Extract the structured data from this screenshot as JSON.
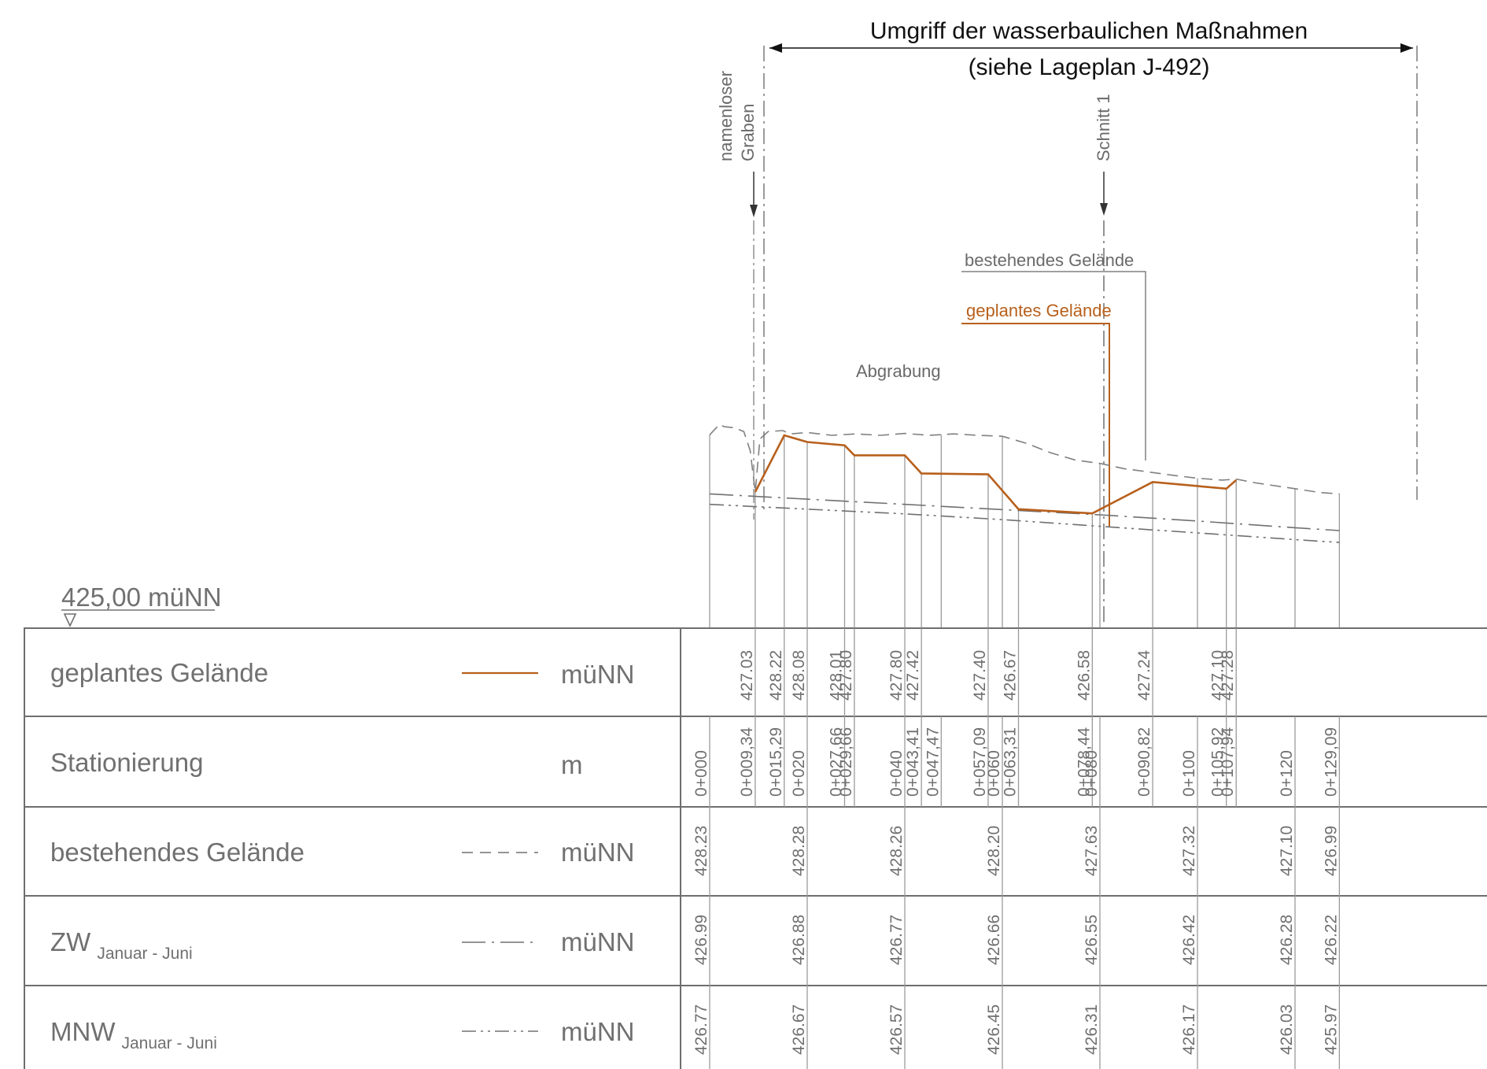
{
  "header": {
    "title_line1": "Umgriff der wasserbaulichen Maßnahmen",
    "title_line2": "(siehe Lageplan J-492)"
  },
  "labels": {
    "graben": [
      "namenloser",
      "Graben"
    ],
    "schnitt": "Schnitt 1",
    "bestehend": "bestehendes Gelände",
    "geplant": "geplantes Gelände",
    "abgrabung": "Abgrabung",
    "reference": "425,00 müNN"
  },
  "colors": {
    "planned": "#b8601c",
    "existing": "#808080",
    "grid": "#9a9a9a"
  },
  "table": {
    "rows": [
      {
        "label": "geplantes Gelände",
        "sub": "",
        "unit": "müNN",
        "line": "solid"
      },
      {
        "label": "Stationierung",
        "sub": "",
        "unit": "m",
        "line": "none"
      },
      {
        "label": "bestehendes Gelände",
        "sub": "",
        "unit": "müNN",
        "line": "dashed"
      },
      {
        "label": "ZW",
        "sub": "Januar - Juni",
        "unit": "müNN",
        "line": "dashdot"
      },
      {
        "label": "MNW",
        "sub": "Januar - Juni",
        "unit": "müNN",
        "line": "dashdotdot"
      }
    ],
    "stations": [
      "0+000",
      "0+009,34",
      "0+015,29",
      "0+020",
      "0+027,66",
      "0+029,66",
      "0+040",
      "0+043,41",
      "0+047,47",
      "0+057,09",
      "0+060",
      "0+063,31",
      "0+078,44",
      "0+080",
      "0+090,82",
      "0+100",
      "0+105,92",
      "0+107,94",
      "0+120",
      "0+129,09"
    ],
    "planned": [
      {
        "st": 9.34,
        "v": "427.03"
      },
      {
        "st": 15.29,
        "v": "428.22"
      },
      {
        "st": 20,
        "v": "428.08"
      },
      {
        "st": 27.66,
        "v": "428.01"
      },
      {
        "st": 29.66,
        "v": "427.80"
      },
      {
        "st": 40,
        "v": "427.80"
      },
      {
        "st": 43.41,
        "v": "427.42"
      },
      {
        "st": 57.09,
        "v": "427.40"
      },
      {
        "st": 63.31,
        "v": "426.67"
      },
      {
        "st": 78.44,
        "v": "426.58"
      },
      {
        "st": 90.82,
        "v": "427.24"
      },
      {
        "st": 105.92,
        "v": "427.10"
      },
      {
        "st": 107.94,
        "v": "427.28"
      }
    ],
    "existing": [
      {
        "st": 0,
        "v": "428.23"
      },
      {
        "st": 20,
        "v": "428.28"
      },
      {
        "st": 40,
        "v": "428.26"
      },
      {
        "st": 60,
        "v": "428.20"
      },
      {
        "st": 80,
        "v": "427.63"
      },
      {
        "st": 100,
        "v": "427.32"
      },
      {
        "st": 120,
        "v": "427.10"
      },
      {
        "st": 129.09,
        "v": "426.99"
      }
    ],
    "zw": [
      {
        "st": 0,
        "v": "426.99"
      },
      {
        "st": 20,
        "v": "426.88"
      },
      {
        "st": 40,
        "v": "426.77"
      },
      {
        "st": 60,
        "v": "426.66"
      },
      {
        "st": 80,
        "v": "426.55"
      },
      {
        "st": 100,
        "v": "426.42"
      },
      {
        "st": 120,
        "v": "426.28"
      },
      {
        "st": 129.09,
        "v": "426.22"
      }
    ],
    "mnw": [
      {
        "st": 0,
        "v": "426.77"
      },
      {
        "st": 20,
        "v": "426.67"
      },
      {
        "st": 40,
        "v": "426.57"
      },
      {
        "st": 60,
        "v": "426.45"
      },
      {
        "st": 80,
        "v": "426.31"
      },
      {
        "st": 100,
        "v": "426.17"
      },
      {
        "st": 120,
        "v": "426.03"
      },
      {
        "st": 129.09,
        "v": "425.97"
      }
    ]
  },
  "profile": {
    "planned_points": [
      [
        9.34,
        427.03
      ],
      [
        15.29,
        428.22
      ],
      [
        20,
        428.08
      ],
      [
        27.66,
        428.01
      ],
      [
        29.66,
        427.8
      ],
      [
        40,
        427.8
      ],
      [
        43.41,
        427.42
      ],
      [
        57.09,
        427.4
      ],
      [
        63.31,
        426.67
      ],
      [
        78.44,
        426.58
      ],
      [
        90.82,
        427.24
      ],
      [
        105.92,
        427.1
      ],
      [
        107.94,
        427.28
      ]
    ],
    "existing_points": [
      [
        0,
        428.23
      ],
      [
        2,
        428.45
      ],
      [
        3,
        428.4
      ],
      [
        5,
        428.38
      ],
      [
        7,
        428.3
      ],
      [
        8.3,
        427.9
      ],
      [
        9.34,
        427.03
      ],
      [
        10.3,
        428.14
      ],
      [
        12,
        428.3
      ],
      [
        15,
        428.32
      ],
      [
        16.5,
        428.25
      ],
      [
        20,
        428.28
      ],
      [
        25,
        428.22
      ],
      [
        30,
        428.25
      ],
      [
        35,
        428.22
      ],
      [
        40,
        428.26
      ],
      [
        45,
        428.22
      ],
      [
        50,
        428.25
      ],
      [
        55,
        428.22
      ],
      [
        60,
        428.2
      ],
      [
        65,
        428.05
      ],
      [
        70,
        427.85
      ],
      [
        75,
        427.7
      ],
      [
        80,
        427.63
      ],
      [
        85,
        427.52
      ],
      [
        90,
        427.45
      ],
      [
        95,
        427.38
      ],
      [
        100,
        427.32
      ],
      [
        105,
        427.28
      ],
      [
        108,
        427.3
      ],
      [
        112,
        427.22
      ],
      [
        120,
        427.1
      ],
      [
        125,
        427.02
      ],
      [
        129.09,
        426.99
      ]
    ],
    "zw_points": [
      [
        0,
        426.99
      ],
      [
        20,
        426.88
      ],
      [
        40,
        426.77
      ],
      [
        60,
        426.66
      ],
      [
        80,
        426.55
      ],
      [
        100,
        426.42
      ],
      [
        120,
        426.28
      ],
      [
        129.09,
        426.22
      ]
    ],
    "mnw_points": [
      [
        0,
        426.77
      ],
      [
        20,
        426.67
      ],
      [
        40,
        426.57
      ],
      [
        60,
        426.45
      ],
      [
        80,
        426.31
      ],
      [
        100,
        426.17
      ],
      [
        120,
        426.03
      ],
      [
        129.09,
        425.97
      ]
    ]
  }
}
